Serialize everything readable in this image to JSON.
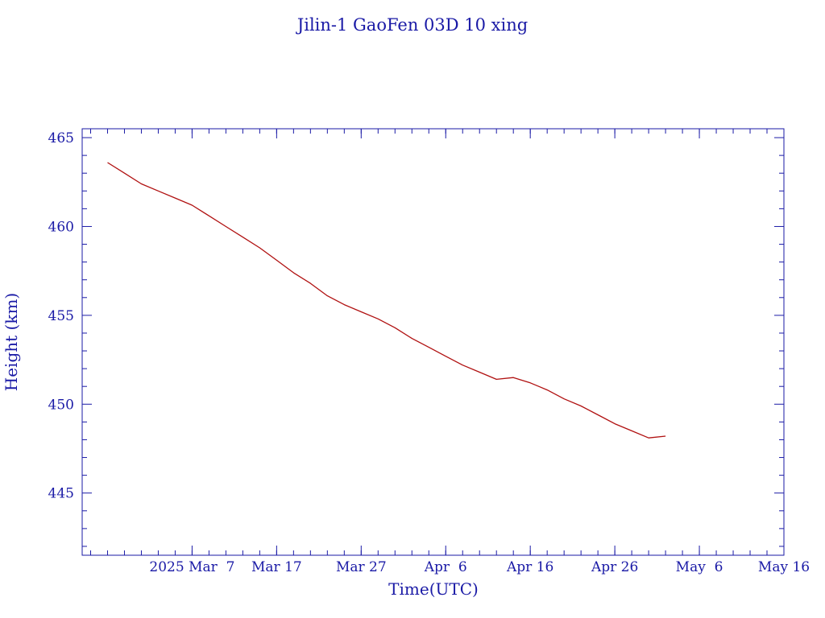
{
  "chart_data": {
    "type": "line",
    "title": "Jilin-1 GaoFen 03D 10 xing",
    "xlabel": "Time(UTC)",
    "ylabel": "Height (km)",
    "xlim": [
      "2025-02-22",
      "2025-05-16T00:00"
    ],
    "ylim": [
      441.5,
      465.5
    ],
    "x_tick_labels": [
      "2025 Mar  7",
      "Mar 17",
      "Mar 27",
      "Apr  6",
      "Apr 16",
      "Apr 26",
      "May  6",
      "May 16"
    ],
    "x_tick_dates": [
      "2025-03-07",
      "2025-03-17",
      "2025-03-27",
      "2025-04-06",
      "2025-04-16",
      "2025-04-26",
      "2025-05-06",
      "2025-05-16"
    ],
    "y_ticks": [
      445,
      450,
      455,
      460,
      465
    ],
    "colors": {
      "axis": "#1a1aa6",
      "line": "#b01010"
    },
    "series": [
      {
        "x": [
          "2025-02-25",
          "2025-02-27",
          "2025-03-01",
          "2025-03-03",
          "2025-03-05",
          "2025-03-07",
          "2025-03-09",
          "2025-03-11",
          "2025-03-13",
          "2025-03-15",
          "2025-03-17",
          "2025-03-19",
          "2025-03-21",
          "2025-03-23",
          "2025-03-25",
          "2025-03-27",
          "2025-03-29",
          "2025-03-31",
          "2025-04-02",
          "2025-04-04",
          "2025-04-06",
          "2025-04-08",
          "2025-04-10",
          "2025-04-12",
          "2025-04-14",
          "2025-04-16",
          "2025-04-17",
          "2025-04-18",
          "2025-04-20",
          "2025-04-22",
          "2025-04-24",
          "2025-04-26",
          "2025-04-28",
          "2025-04-30",
          "2025-05-02"
        ],
        "y": [
          463.6,
          463.0,
          462.4,
          462.0,
          461.6,
          461.2,
          460.6,
          460.0,
          459.4,
          458.8,
          458.1,
          457.4,
          456.8,
          456.1,
          455.6,
          455.2,
          454.8,
          454.3,
          453.7,
          453.2,
          452.7,
          452.2,
          451.8,
          451.4,
          451.5,
          451.2,
          451.0,
          450.8,
          450.3,
          449.9,
          449.4,
          448.9,
          448.5,
          448.1,
          448.2
        ]
      }
    ]
  }
}
